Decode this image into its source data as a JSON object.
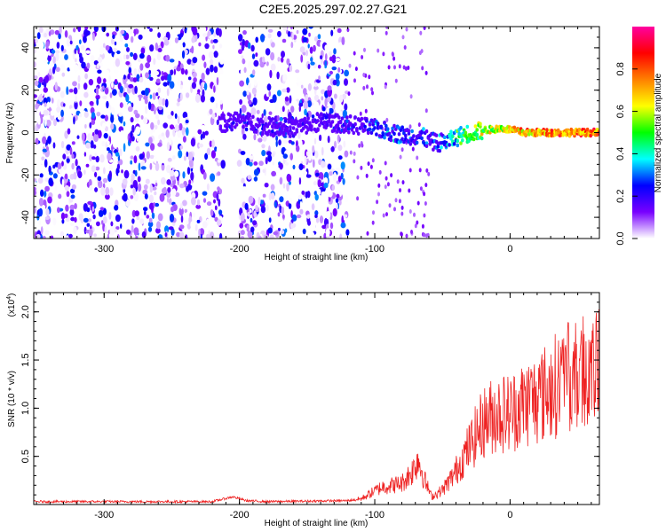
{
  "title": "C2E5.2025.297.02.27.G21",
  "chart_data": [
    {
      "type": "heatmap",
      "title": "C2E5.2025.297.02.27.G21",
      "xlabel": "Height of straight line (km)",
      "ylabel": "Frequency (Hz)",
      "xlim": [
        -352,
        66
      ],
      "ylim": [
        -50,
        50
      ],
      "xticks": [
        -300,
        -200,
        -100,
        0
      ],
      "xtick_labels": [
        "-300",
        "-200",
        "-100",
        "0"
      ],
      "yticks": [
        -40,
        -20,
        0,
        20,
        40
      ],
      "ytick_labels": [
        "-40",
        "-20",
        "0",
        "20",
        "40"
      ],
      "colorbar": {
        "label": "Normalized spectral amplitude",
        "range": [
          0,
          1
        ],
        "ticks": [
          0.0,
          0.2,
          0.4,
          0.6,
          0.8
        ],
        "tick_labels": [
          "0.0",
          "0.2",
          "0.4",
          "0.6",
          "0.8"
        ],
        "stops": [
          "#ffffff",
          "#7800ff",
          "#0000ff",
          "#00ffff",
          "#00ff00",
          "#ffff00",
          "#ff8000",
          "#ff0000",
          "#ff00a0"
        ]
      },
      "noise_band": {
        "x_from": -352,
        "x_to": -120,
        "gap": [
          -212,
          -200
        ]
      },
      "track": {
        "x": [
          -214,
          -200,
          -180,
          -160,
          -140,
          -120,
          -100,
          -80,
          -65,
          -55,
          -45,
          -35,
          -20,
          -5,
          10,
          30,
          50,
          66
        ],
        "y": [
          4,
          6,
          3,
          2,
          5,
          4,
          2,
          -1,
          -2,
          -5,
          -4,
          -1,
          1,
          2,
          0,
          0,
          0,
          0
        ],
        "amplitude": [
          0.25,
          0.3,
          0.28,
          0.25,
          0.3,
          0.3,
          0.4,
          0.45,
          0.4,
          0.35,
          0.55,
          0.65,
          0.75,
          0.8,
          0.9,
          0.95,
          0.95,
          0.95
        ]
      }
    },
    {
      "type": "line",
      "xlabel": "Height of straight line (km)",
      "ylabel": "SNR (10 * v/v)",
      "y_multiplier": "(x10",
      "y_multiplier_exp": "4",
      "xlim": [
        -352,
        66
      ],
      "ylim": [
        0.0,
        2.2
      ],
      "xticks": [
        -300,
        -200,
        -100,
        0
      ],
      "xtick_labels": [
        "-300",
        "-200",
        "-100",
        "0"
      ],
      "yticks": [
        0.5,
        1.0,
        1.5,
        2.0
      ],
      "ytick_labels": [
        "0.5",
        "1.0",
        "1.5",
        "2.0"
      ],
      "color": "#ee2222",
      "series": [
        {
          "name": "SNR",
          "x": [
            -352,
            -300,
            -220,
            -205,
            -195,
            -180,
            -120,
            -110,
            -95,
            -80,
            -72,
            -68,
            -63,
            -58,
            -50,
            -42,
            -35,
            -28,
            -20,
            -10,
            0,
            10,
            20,
            30,
            40,
            50,
            55,
            60,
            66
          ],
          "y": [
            0.03,
            0.03,
            0.03,
            0.08,
            0.04,
            0.03,
            0.04,
            0.06,
            0.18,
            0.22,
            0.35,
            0.48,
            0.25,
            0.08,
            0.15,
            0.3,
            0.48,
            0.65,
            0.85,
            0.95,
            0.95,
            1.05,
            1.1,
            1.2,
            1.3,
            1.32,
            1.45,
            1.3,
            1.45
          ]
        }
      ]
    }
  ]
}
